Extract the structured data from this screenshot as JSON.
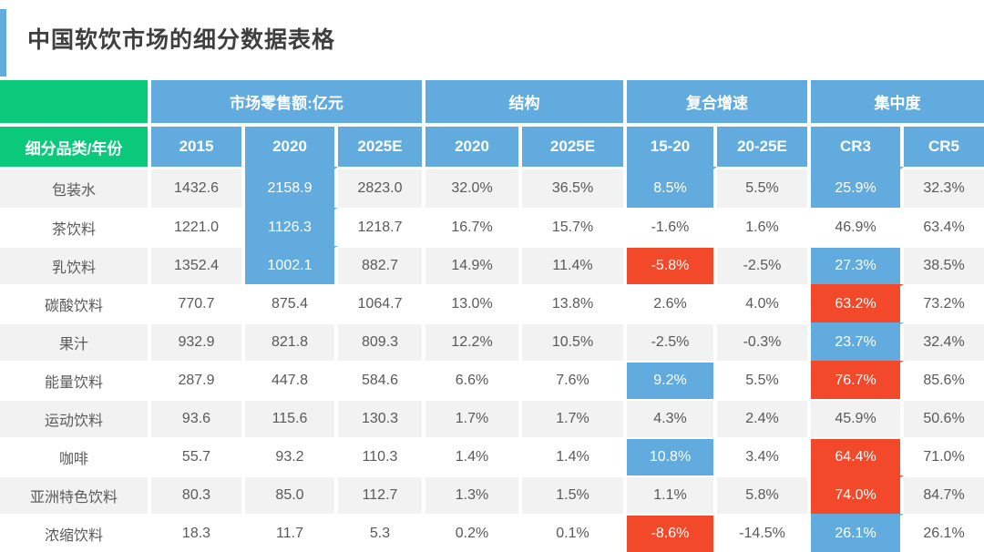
{
  "title": "中国软饮市场的细分数据表格",
  "colors": {
    "blue": "#62ABDE",
    "red": "#F3492B",
    "green": "#0BC97B",
    "stripe_gray": "#F2F2F2",
    "body_text": "#595959",
    "title_text": "#3F3F3F"
  },
  "chart_data": {
    "type": "table",
    "title": "中国软饮市场的细分数据表格",
    "corner_label": "细分品类/年份",
    "column_groups": [
      {
        "label": "市场零售额:亿元",
        "span": 3
      },
      {
        "label": "结构",
        "span": 2
      },
      {
        "label": "复合增速",
        "span": 2
      },
      {
        "label": "集中度",
        "span": 2
      }
    ],
    "columns": [
      "2015",
      "2020",
      "2025E",
      "2020",
      "2025E",
      "15-20",
      "20-25E",
      "CR3",
      "CR5"
    ],
    "rows": [
      {
        "label": "包装水",
        "values": [
          "1432.6",
          "2158.9",
          "2823.0",
          "32.0%",
          "36.5%",
          "8.5%",
          "5.5%",
          "25.9%",
          "32.3%"
        ],
        "highlights": [
          {
            "col": 1,
            "color": "blue",
            "merge_top": true
          },
          {
            "col": 5,
            "color": "blue",
            "merge_top": true
          },
          {
            "col": 7,
            "color": "blue",
            "merge_top": true
          }
        ]
      },
      {
        "label": "茶饮料",
        "values": [
          "1221.0",
          "1126.3",
          "1218.7",
          "16.7%",
          "15.7%",
          "-1.6%",
          "1.6%",
          "46.9%",
          "63.4%"
        ],
        "highlights": [
          {
            "col": 1,
            "color": "blue",
            "merge_top": true
          }
        ]
      },
      {
        "label": "乳饮料",
        "values": [
          "1352.4",
          "1002.1",
          "882.7",
          "14.9%",
          "11.4%",
          "-5.8%",
          "-2.5%",
          "27.3%",
          "38.5%"
        ],
        "highlights": [
          {
            "col": 1,
            "color": "blue",
            "merge_top": true
          },
          {
            "col": 5,
            "color": "red",
            "merge_top": false
          },
          {
            "col": 7,
            "color": "blue",
            "merge_top": false
          }
        ]
      },
      {
        "label": "碳酸饮料",
        "values": [
          "770.7",
          "875.4",
          "1064.7",
          "13.0%",
          "13.8%",
          "2.6%",
          "4.0%",
          "63.2%",
          "73.2%"
        ],
        "highlights": [
          {
            "col": 7,
            "color": "red",
            "merge_top": true
          }
        ]
      },
      {
        "label": "果汁",
        "values": [
          "932.9",
          "821.8",
          "809.3",
          "12.2%",
          "10.5%",
          "-2.5%",
          "-0.3%",
          "23.7%",
          "32.4%"
        ],
        "highlights": [
          {
            "col": 7,
            "color": "blue",
            "merge_top": true
          }
        ]
      },
      {
        "label": "能量饮料",
        "values": [
          "287.9",
          "447.8",
          "584.6",
          "6.6%",
          "7.6%",
          "9.2%",
          "5.5%",
          "76.7%",
          "85.6%"
        ],
        "highlights": [
          {
            "col": 5,
            "color": "blue",
            "merge_top": false
          },
          {
            "col": 7,
            "color": "red",
            "merge_top": true
          }
        ]
      },
      {
        "label": "运动饮料",
        "values": [
          "93.6",
          "115.6",
          "130.3",
          "1.7%",
          "1.7%",
          "4.3%",
          "2.4%",
          "45.9%",
          "50.6%"
        ],
        "highlights": []
      },
      {
        "label": "咖啡",
        "values": [
          "55.7",
          "93.2",
          "110.3",
          "1.4%",
          "1.4%",
          "10.8%",
          "3.4%",
          "64.4%",
          "71.0%"
        ],
        "highlights": [
          {
            "col": 5,
            "color": "blue",
            "merge_top": false
          },
          {
            "col": 7,
            "color": "red",
            "merge_top": false
          }
        ]
      },
      {
        "label": "亚洲特色饮料",
        "values": [
          "80.3",
          "85.0",
          "112.7",
          "1.3%",
          "1.5%",
          "1.1%",
          "5.8%",
          "74.0%",
          "84.7%"
        ],
        "highlights": [
          {
            "col": 7,
            "color": "red",
            "merge_top": true
          }
        ]
      },
      {
        "label": "浓缩饮料",
        "values": [
          "18.3",
          "11.7",
          "5.3",
          "0.2%",
          "0.1%",
          "-8.6%",
          "-14.5%",
          "26.1%",
          "26.1%"
        ],
        "highlights": [
          {
            "col": 5,
            "color": "red",
            "merge_top": false
          },
          {
            "col": 7,
            "color": "blue",
            "merge_top": true
          }
        ]
      }
    ]
  }
}
